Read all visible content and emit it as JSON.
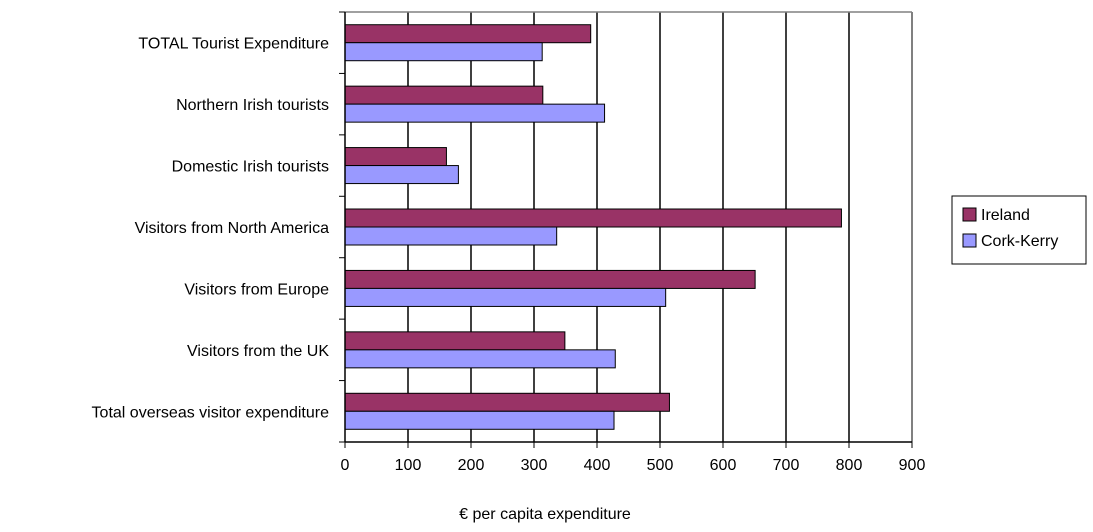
{
  "chart_data": {
    "type": "bar",
    "orientation": "horizontal",
    "categories": [
      "TOTAL Tourist Expenditure",
      "Northern Irish tourists",
      "Domestic Irish tourists",
      "Visitors from North America",
      "Visitors from Europe",
      "Visitors from the UK",
      "Total overseas visitor expenditure"
    ],
    "series": [
      {
        "name": "Ireland",
        "color": "#993366",
        "values": [
          390,
          314,
          161,
          788,
          651,
          349,
          515
        ]
      },
      {
        "name": "Cork-Kerry",
        "color": "#9999ff",
        "values": [
          313,
          412,
          180,
          336,
          509,
          429,
          427
        ]
      }
    ],
    "xlabel": "€ per capita expenditure",
    "ylabel": "",
    "title": "",
    "xlim": [
      0,
      900
    ],
    "xticks": [
      "0",
      "100",
      "200",
      "300",
      "400",
      "500",
      "600",
      "700",
      "800",
      "900"
    ],
    "grid": "vertical",
    "legend_position": "right"
  }
}
